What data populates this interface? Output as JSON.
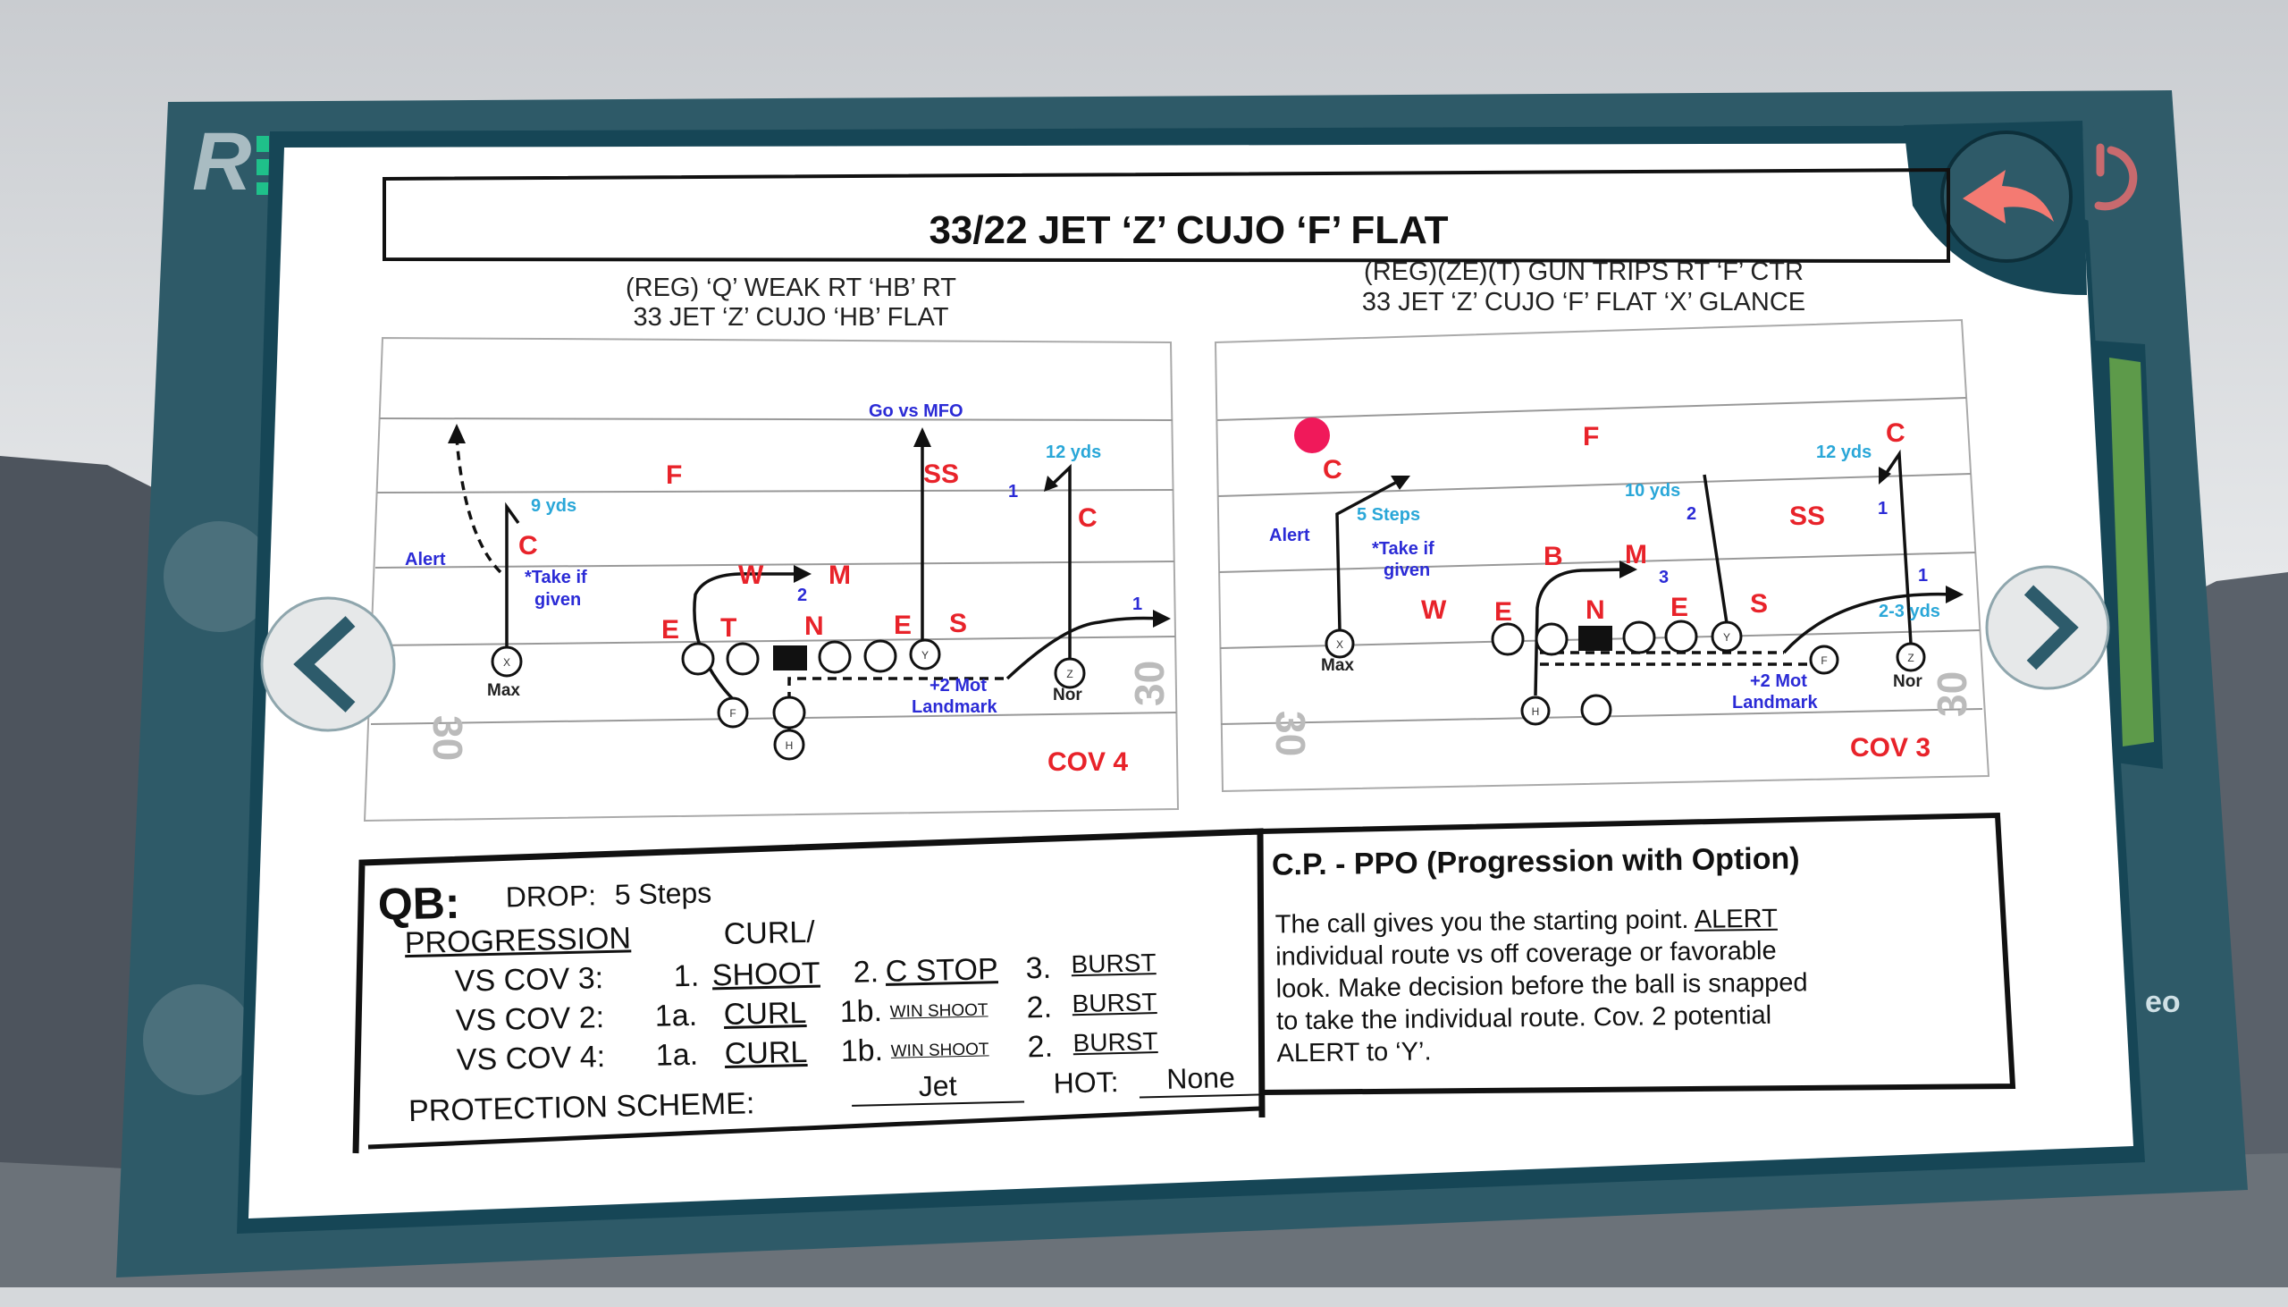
{
  "app": {
    "logo_letter": "R",
    "side_panel_label": "eo"
  },
  "colors": {
    "teal_panel": "#2e5a68",
    "teal_dark": "#164656",
    "accent_green": "#1fc08a",
    "back_arrow": "#f47a72",
    "defense": "#e8232a",
    "notes": "#2b2bd6",
    "distance": "#2aa7d8",
    "highlight_dot": "#f0195a"
  },
  "icons": {
    "back": "reply-arrow-icon",
    "power": "power-icon",
    "prev": "chevron-left-icon",
    "next": "chevron-right-icon"
  },
  "sheet": {
    "title": "33/22 JET ‘Z’ CUJO ‘F’ FLAT",
    "left_subtitle": [
      "(REG) ‘Q’ WEAK RT ‘HB’ RT",
      "33 JET ‘Z’ CUJO ‘HB’ FLAT"
    ],
    "right_subtitle": [
      "(REG)(ZE)(T) GUN TRIPS RT ‘F’ CTR",
      "33 JET ‘Z’ CUJO ‘F’ FLAT ‘X’ GLANCE"
    ]
  },
  "left_diagram": {
    "coverage": "COV 4",
    "yard_number": "30",
    "defense": [
      "F",
      "SS",
      "C",
      "C",
      "W",
      "M",
      "E",
      "T",
      "N",
      "E",
      "S"
    ],
    "notes": [
      "Go vs MFO",
      "Alert",
      "*Take if",
      "given",
      "1",
      "2",
      "1",
      "+2 Mot",
      "Landmark"
    ],
    "distances": [
      "9 yds",
      "12 yds"
    ],
    "players": [
      "X",
      "Y",
      "Z",
      "F",
      "H"
    ],
    "player_notes": [
      "Max",
      "Nor"
    ]
  },
  "right_diagram": {
    "coverage": "COV 3",
    "yard_number": "30",
    "defense": [
      "C",
      "F",
      "C",
      "SS",
      "B",
      "M",
      "W",
      "E",
      "N",
      "E",
      "S"
    ],
    "notes": [
      "Alert",
      "*Take if",
      "given",
      "2",
      "1",
      "3",
      "1",
      "+2 Mot",
      "Landmark"
    ],
    "distances": [
      "5 Steps",
      "10 yds",
      "12 yds",
      "2-3 yds"
    ],
    "players": [
      "X",
      "Y",
      "F",
      "Z",
      "H"
    ],
    "player_notes": [
      "Max",
      "Nor"
    ]
  },
  "qb": {
    "label": "QB:",
    "drop_label": "DROP:",
    "drop_value": "5 Steps",
    "progression_label": "PROGRESSION",
    "curl_prefix": "CURL/",
    "rows": [
      {
        "label": "VS COV 3:",
        "n1": "1.",
        "v1": "SHOOT",
        "n2": "2.",
        "v2": "C STOP",
        "n3": "3.",
        "v3": "BURST"
      },
      {
        "label": "VS COV 2:",
        "n1": "1a.",
        "v1": "CURL",
        "n2": "1b.",
        "v2": "WIN SHOOT",
        "n3": "2.",
        "v3": "BURST"
      },
      {
        "label": "VS COV 4:",
        "n1": "1a.",
        "v1": "CURL",
        "n2": "1b.",
        "v2": "WIN SHOOT",
        "n3": "2.",
        "v3": "BURST"
      }
    ],
    "protection_label": "PROTECTION SCHEME:",
    "protection_value": "Jet",
    "hot_label": "HOT:",
    "hot_value": "None"
  },
  "cp": {
    "title": "C.P. -  PPO (Progression with Option)",
    "lines": [
      "The call gives you the starting point. ",
      "individual route vs off coverage or favorable",
      "look. Make decision before the ball is snapped",
      "to take the individual route. Cov. 2 potential",
      "ALERT to ‘Y’."
    ],
    "alert_word": "ALERT"
  }
}
